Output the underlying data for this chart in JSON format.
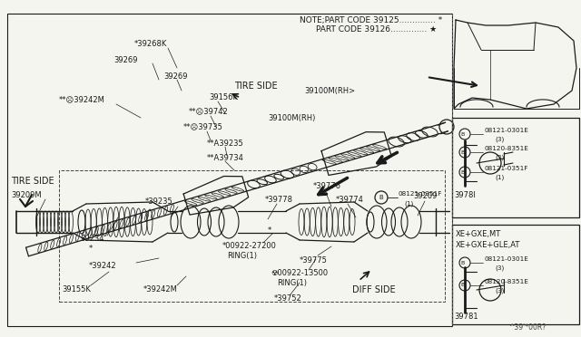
{
  "bg_color": "#f5f5f0",
  "figsize": [
    6.4,
    3.72
  ],
  "dpi": 100,
  "note_line1": "NOTE;PART CODE 39125.............. *",
  "note_line2": "      PART CODE 39126.............. ★",
  "watermark": "^39'*00R?"
}
